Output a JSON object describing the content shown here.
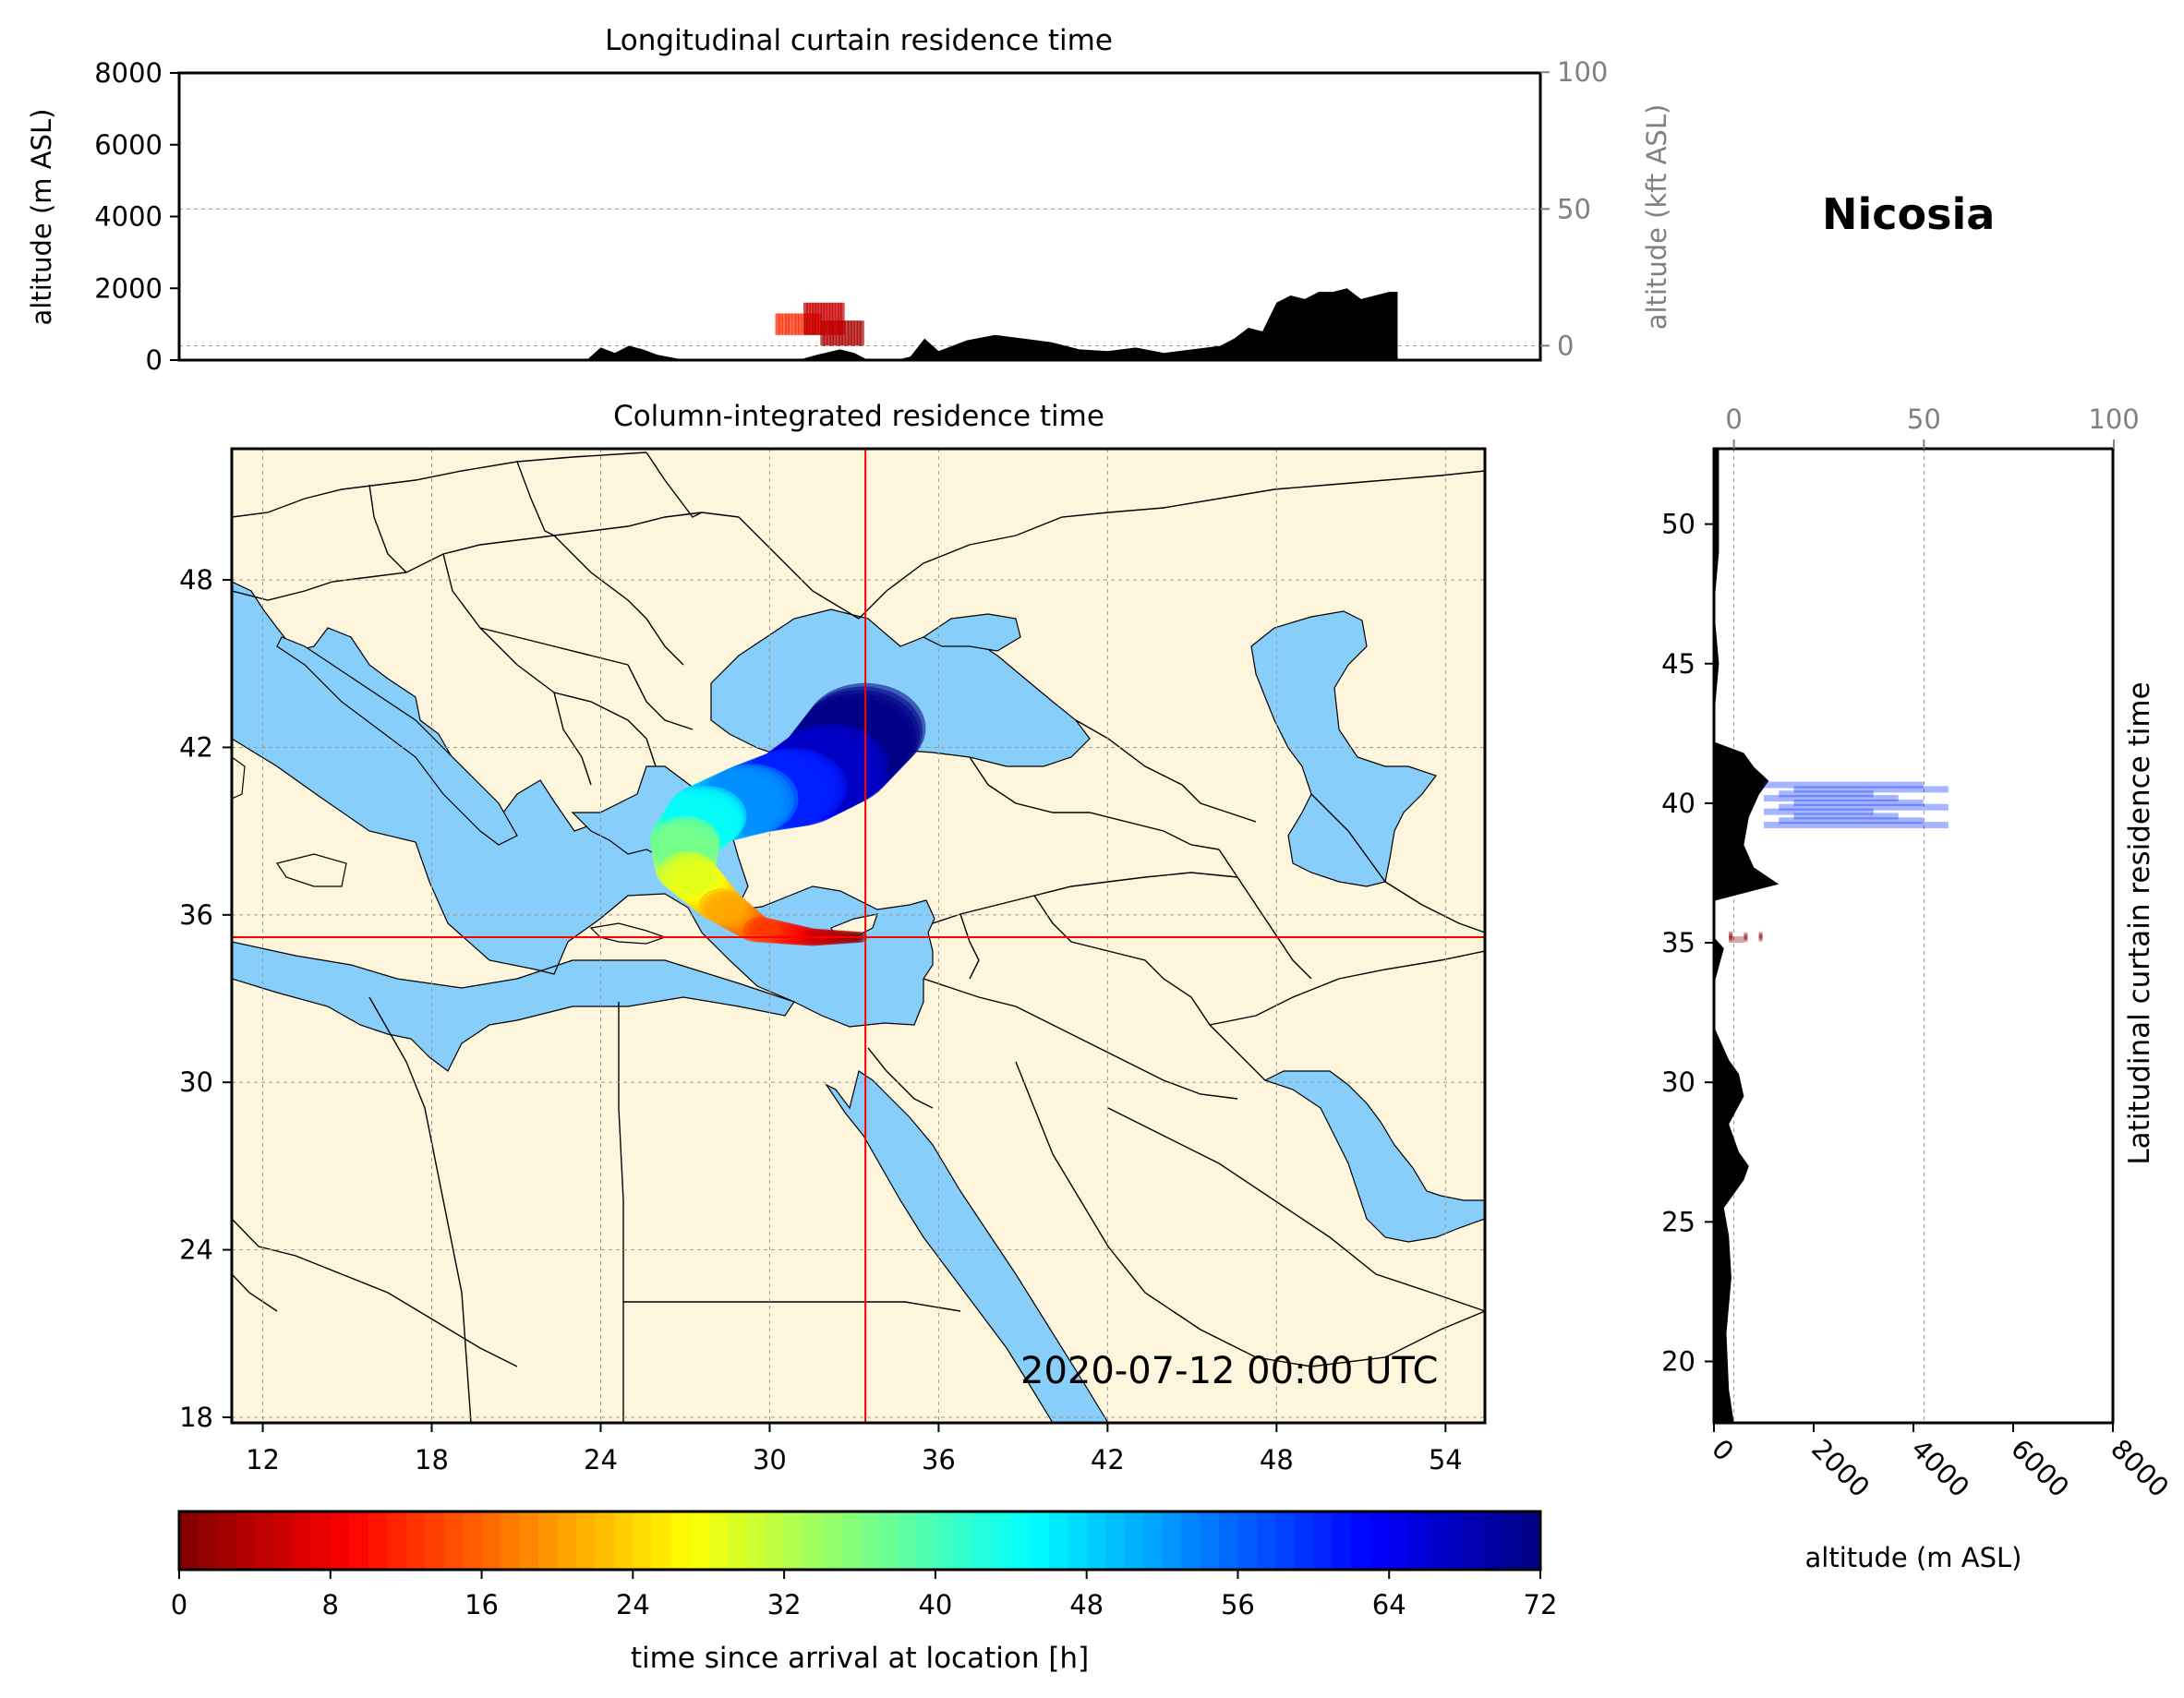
{
  "station": "Nicosia",
  "timestamp": "2020-07-12 00:00 UTC",
  "chart_data": [
    {
      "type": "area",
      "title": "Longitudinal curtain residence time",
      "xlabel": "",
      "ylabel": "altitude (m ASL)",
      "ylabel_right": "altitude (kft ASL)",
      "ylim": [
        0,
        8000
      ],
      "yticks": [
        "0",
        "2000",
        "4000",
        "6000",
        "8000"
      ],
      "yticks_right": [
        "0",
        "50",
        "100"
      ],
      "grid": true,
      "terrain_profile": {
        "x_lon": [
          23.5,
          24.0,
          24.5,
          25.0,
          25.5,
          26.0,
          27.0,
          31.0,
          31.7,
          32.5,
          33.0,
          33.5,
          34.0,
          34.5,
          35.0,
          35.5,
          36.0,
          37.0,
          38.0,
          39.0,
          40.0,
          41.0,
          42.0,
          43.0,
          44.0,
          45.0,
          46.0,
          46.5,
          47.0,
          47.5,
          48.0,
          48.5,
          49.0,
          49.5,
          50.0,
          50.5,
          51.0,
          51.5,
          52.0,
          52.3
        ],
        "altitude_m": [
          0,
          350,
          200,
          400,
          300,
          150,
          0,
          0,
          150,
          300,
          200,
          0,
          0,
          0,
          100,
          600,
          250,
          550,
          700,
          600,
          500,
          300,
          250,
          350,
          200,
          300,
          400,
          600,
          900,
          800,
          1600,
          1800,
          1700,
          1900,
          1900,
          2000,
          1700,
          1800,
          1900,
          1900
        ]
      },
      "trajectory_points": [
        {
          "lon_range": [
            31.2,
            32.6
          ],
          "altitude_range_m": [
            700,
            1600
          ],
          "time_since_arrival_h": 4
        },
        {
          "lon_range": [
            31.8,
            33.3
          ],
          "altitude_range_m": [
            400,
            1100
          ],
          "time_since_arrival_h": 2
        },
        {
          "lon_range": [
            30.2,
            31.8
          ],
          "altitude_range_m": [
            700,
            1300
          ],
          "time_since_arrival_h": 11
        }
      ]
    },
    {
      "type": "heatmap",
      "title": "Column-integrated residence time",
      "xlabel": "",
      "ylabel": "",
      "xlim": [
        10.9,
        55.4
      ],
      "ylim": [
        17.8,
        52.7
      ],
      "xticks": [
        "12",
        "18",
        "24",
        "30",
        "36",
        "42",
        "48",
        "54"
      ],
      "yticks": [
        "18",
        "24",
        "30",
        "36",
        "42",
        "48"
      ],
      "grid": true,
      "colors": {
        "land": "#fdf5dc",
        "sea": "#87cefa",
        "borders": "#000000",
        "crosshair": "#ff0000"
      },
      "arrival_location": {
        "lon": 33.4,
        "lat": 35.2
      },
      "trajectory_band": [
        {
          "lon": 33.2,
          "lat": 35.2,
          "time_since_arrival_h": 0
        },
        {
          "lon": 31.5,
          "lat": 35.2,
          "time_since_arrival_h": 6
        },
        {
          "lon": 29.5,
          "lat": 35.5,
          "time_since_arrival_h": 14
        },
        {
          "lon": 28.2,
          "lat": 36.4,
          "time_since_arrival_h": 22
        },
        {
          "lon": 27.0,
          "lat": 37.6,
          "time_since_arrival_h": 30
        },
        {
          "lon": 27.0,
          "lat": 38.7,
          "time_since_arrival_h": 38
        },
        {
          "lon": 27.8,
          "lat": 39.6,
          "time_since_arrival_h": 46
        },
        {
          "lon": 29.5,
          "lat": 40.2,
          "time_since_arrival_h": 54
        },
        {
          "lon": 31.0,
          "lat": 40.6,
          "time_since_arrival_h": 62
        },
        {
          "lon": 32.3,
          "lat": 41.4,
          "time_since_arrival_h": 68
        },
        {
          "lon": 33.5,
          "lat": 42.8,
          "time_since_arrival_h": 72
        }
      ]
    },
    {
      "type": "area",
      "title": "",
      "ylabel_right": "Latitudinal curtain residence time",
      "xlabel": "altitude (m ASL)",
      "xlim": [
        0,
        8000
      ],
      "xticks": [
        "0",
        "2000",
        "4000",
        "6000",
        "8000"
      ],
      "xticks_top": [
        "0",
        "50",
        "100"
      ],
      "ylim": [
        17.8,
        52.7
      ],
      "yticks": [
        "20",
        "25",
        "30",
        "35",
        "40",
        "45",
        "50"
      ],
      "grid": true,
      "terrain_profile": {
        "lat": [
          17.8,
          19.0,
          21.0,
          23.0,
          24.5,
          25.5,
          26.5,
          27.0,
          27.5,
          28.5,
          29.5,
          30.3,
          30.8,
          32.0,
          33.5,
          34.8,
          35.2,
          35.6,
          36.5,
          37.1,
          37.7,
          38.5,
          39.5,
          40.3,
          40.8,
          41.3,
          41.8,
          42.2,
          43.0,
          45.0,
          47.0,
          49.0,
          51.0,
          52.7
        ],
        "altitude_m": [
          400,
          300,
          250,
          350,
          300,
          200,
          600,
          700,
          500,
          300,
          600,
          500,
          300,
          0,
          0,
          200,
          0,
          0,
          0,
          1300,
          800,
          600,
          700,
          900,
          1100,
          800,
          600,
          0,
          0,
          100,
          0,
          100,
          100,
          100
        ]
      },
      "trajectory_points": [
        {
          "lat_range": [
            39.2,
            40.8
          ],
          "altitude_range_m": [
            1000,
            4700
          ],
          "time_since_arrival_h": 60
        },
        {
          "lat_range": [
            35.1,
            35.3
          ],
          "altitude_range_m": [
            300,
            600
          ],
          "time_since_arrival_h": 1
        }
      ]
    },
    {
      "type": "heatmap",
      "title": "",
      "xlabel": "time since arrival at location [h]",
      "colorbar_range": [
        0,
        72
      ],
      "ticks": [
        "0",
        "8",
        "16",
        "24",
        "32",
        "40",
        "48",
        "56",
        "64",
        "72"
      ],
      "colormap": "jet_r"
    }
  ]
}
